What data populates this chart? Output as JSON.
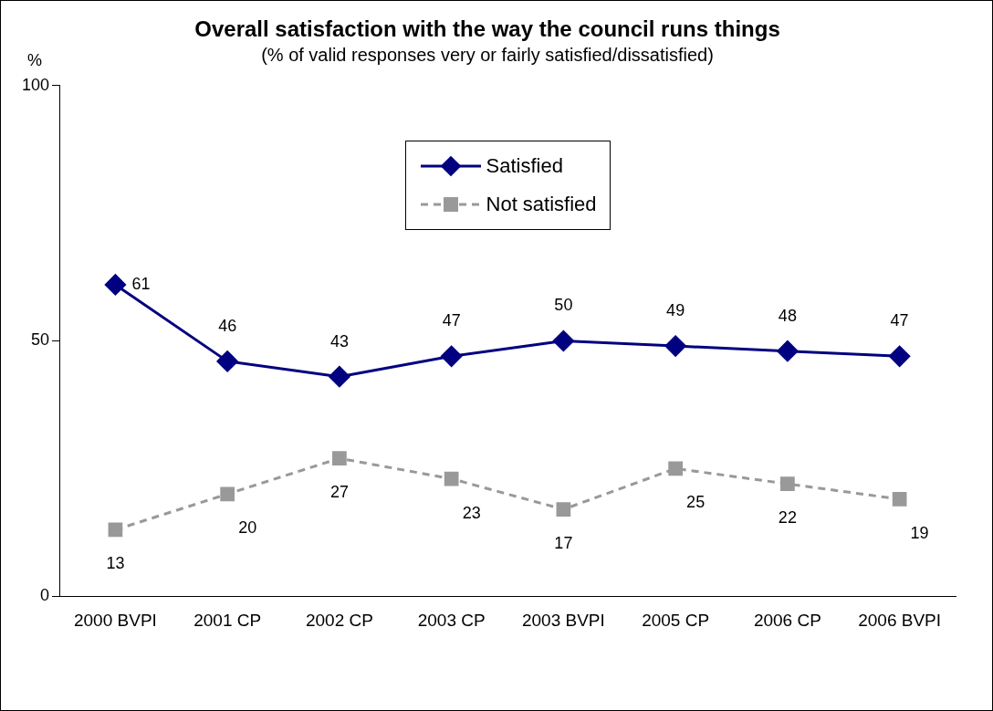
{
  "chart_data": {
    "type": "line",
    "title": "Overall satisfaction with the way the council runs things",
    "subtitle": "(% of valid responses very or fairly satisfied/dissatisfied)",
    "ylabel": "%",
    "categories": [
      "2000 BVPI",
      "2001 CP",
      "2002 CP",
      "2003 CP",
      "2003 BVPI",
      "2005 CP",
      "2006 CP",
      "2006 BVPI"
    ],
    "series": [
      {
        "name": "Satisfied",
        "color": "#000080",
        "values": [
          61,
          46,
          43,
          47,
          50,
          49,
          48,
          47
        ],
        "marker": "diamond",
        "line_style": "solid"
      },
      {
        "name": "Not satisfied",
        "color": "#999999",
        "values": [
          13,
          20,
          27,
          23,
          17,
          25,
          22,
          19
        ],
        "marker": "square",
        "line_style": "dashed"
      }
    ],
    "ylim": [
      0,
      100
    ],
    "yticks": [
      0,
      50,
      100
    ],
    "grid": false,
    "legend": "top",
    "data_labels": true
  }
}
